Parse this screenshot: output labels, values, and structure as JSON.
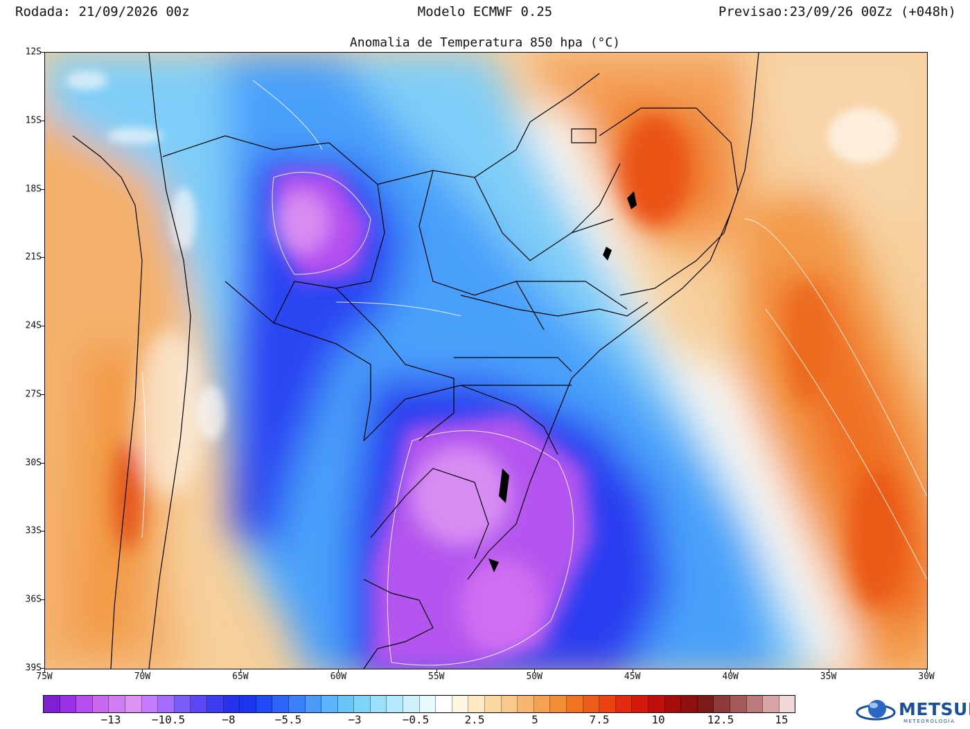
{
  "header": {
    "run": "Rodada: 21/09/2026 00z",
    "model": "Modelo ECMWF 0.25",
    "valid": "Previsao:23/09/26 00Zz (+048h)"
  },
  "title": "Anomalia de Temperatura 850 hpa (°C)",
  "map": {
    "lon_range": [
      -75,
      -30
    ],
    "lat_range": [
      -39,
      -12
    ],
    "lat_labels": [
      "12S",
      "15S",
      "18S",
      "21S",
      "24S",
      "27S",
      "30S",
      "33S",
      "36S",
      "39S"
    ],
    "lon_labels": [
      "75W",
      "70W",
      "65W",
      "60W",
      "55W",
      "50W",
      "45W",
      "40W",
      "35W",
      "30W"
    ],
    "features": [
      {
        "name": "cold-core-bolivia",
        "lon": -62,
        "lat": -19.3,
        "anomaly": -12
      },
      {
        "name": "cold-core-rio-grande-do-sul",
        "lon": -53.5,
        "lat": -31.5,
        "anomaly": -12.5
      },
      {
        "name": "cold-core-offshore-south",
        "lon": -51,
        "lat": -35,
        "anomaly": -11
      },
      {
        "name": "warm-core-minas-gerais",
        "lon": -43.5,
        "lat": -17,
        "anomaly": 7.5
      },
      {
        "name": "warm-core-atlantic",
        "lon": -38.5,
        "lat": -22,
        "anomaly": 8
      },
      {
        "name": "warm-core-southeast-atlantic",
        "lon": -31.5,
        "lat": -34,
        "anomaly": 8.5
      },
      {
        "name": "warm-core-chile",
        "lon": -71,
        "lat": -31.5,
        "anomaly": 6.5
      }
    ]
  },
  "colorbar": {
    "colors": [
      "#7e1fd6",
      "#9b31e8",
      "#b84ef0",
      "#c968f0",
      "#d27df2",
      "#dc92f3",
      "#c57bff",
      "#a46cff",
      "#7a5cf9",
      "#5a46f3",
      "#3e3cf0",
      "#2432ec",
      "#1a36f0",
      "#2048f5",
      "#2c64fa",
      "#3a80fb",
      "#4b9bfb",
      "#5ab3fc",
      "#68c6fb",
      "#7cd4fb",
      "#98e0fb",
      "#b3eafc",
      "#cdf2fd",
      "#e6fafe",
      "#ffffff",
      "#fff6e2",
      "#ffe9c2",
      "#fcd9a2",
      "#fac98b",
      "#f8b670",
      "#f6a152",
      "#f48e36",
      "#ef7521",
      "#ee5a18",
      "#ec4212",
      "#e42a0e",
      "#d6180c",
      "#c20e0c",
      "#a60c0c",
      "#8e1010",
      "#7d1a1a",
      "#8c3a3a",
      "#a45a5a",
      "#bc7a7a",
      "#d6a4a4",
      "#f0d8d8"
    ],
    "labels": [
      "−13",
      "−10.5",
      "−8",
      "−5.5",
      "−3",
      "−0.5",
      "2.5",
      "5",
      "7.5",
      "10",
      "12.5",
      "15"
    ]
  },
  "logo": {
    "text": "METSUL",
    "subtext": "METEOROLOGIA"
  }
}
